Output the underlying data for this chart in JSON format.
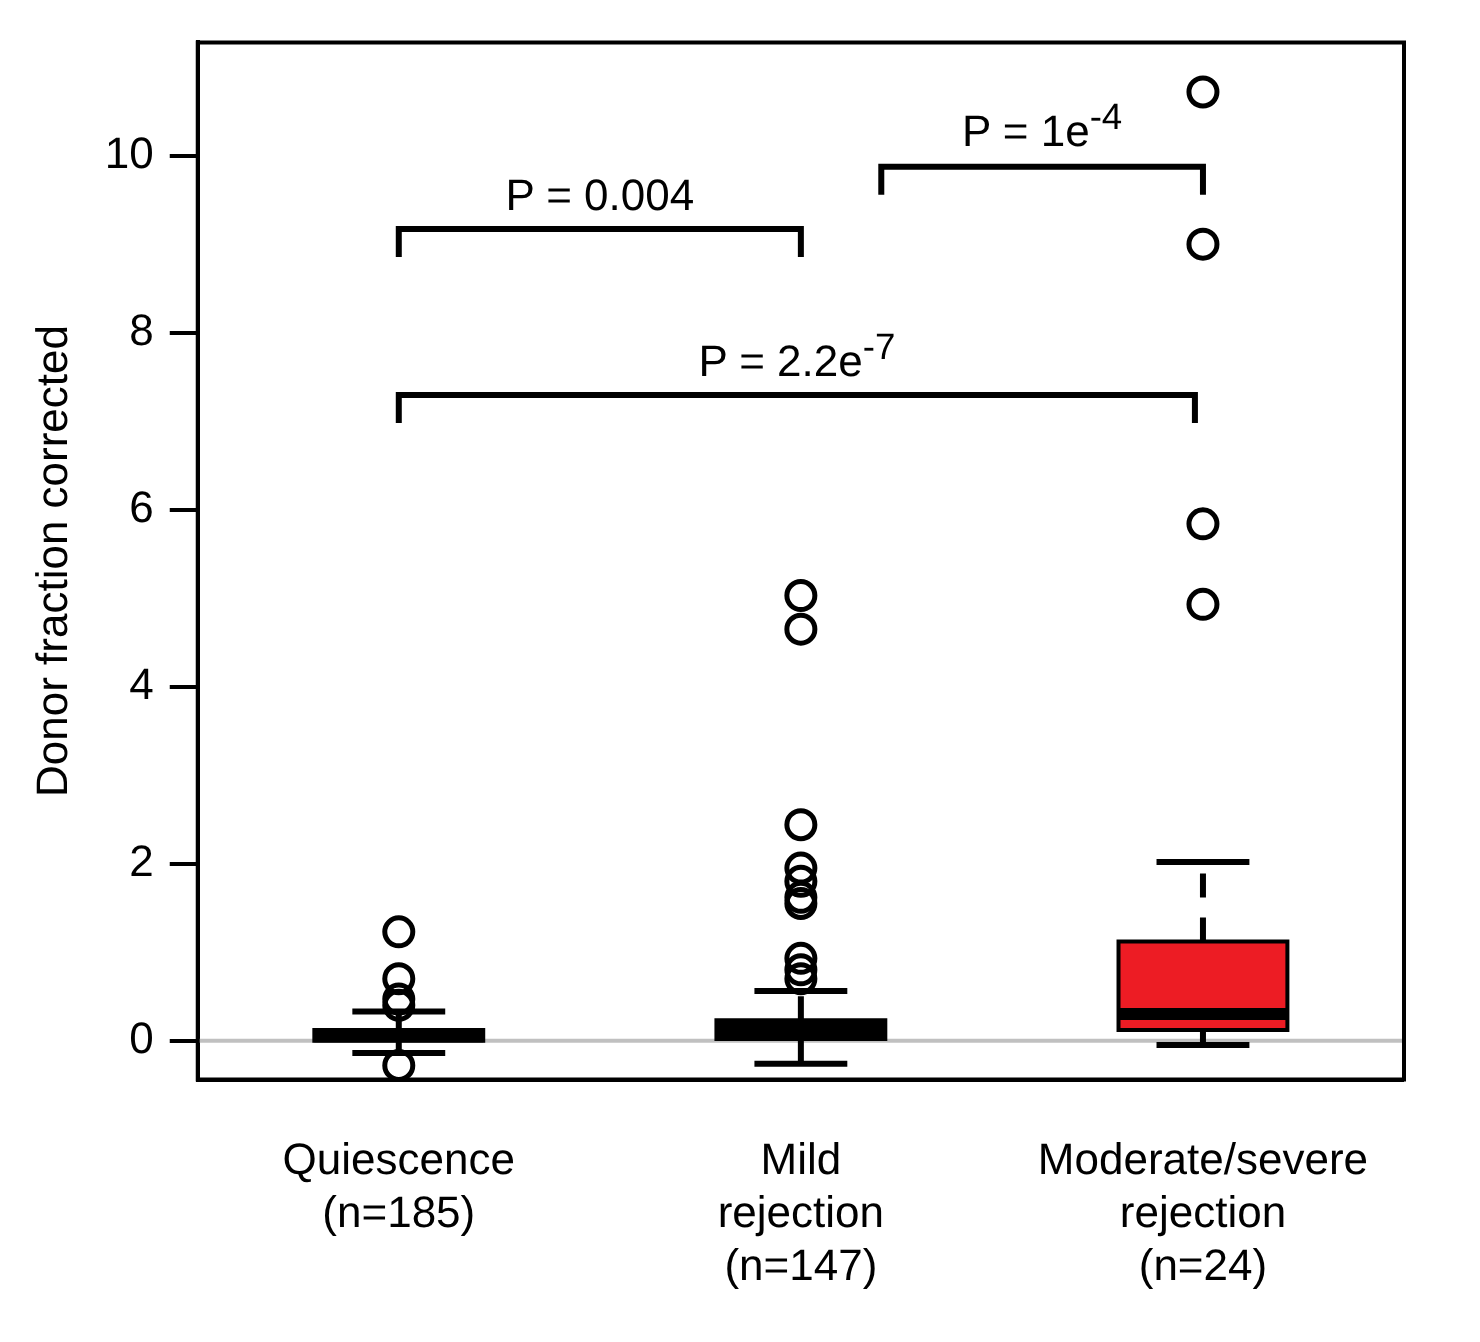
{
  "chart_data": {
    "type": "box",
    "ylabel": "Donor fraction corrected",
    "categories": [
      "Quiescence\n(n=185)",
      "Mild\nrejection\n(n=147)",
      "Moderate/severe\nrejection\n(n=24)"
    ],
    "colors": [
      "#000000",
      "#000000",
      "#ed1c24"
    ],
    "boxes": [
      {
        "low": -0.14,
        "q1": 0.0,
        "median": 0.05,
        "q3": 0.12,
        "high": 0.33,
        "outliers": [
          1.23,
          0.7,
          0.47,
          0.4,
          -0.28
        ]
      },
      {
        "low": -0.26,
        "q1": 0.02,
        "median": 0.1,
        "q3": 0.23,
        "high": 0.56,
        "outliers": [
          5.03,
          4.65,
          2.44,
          1.95,
          1.8,
          1.62,
          1.55,
          0.93,
          0.8,
          0.7
        ]
      },
      {
        "low": -0.05,
        "q1": 0.12,
        "median": 0.3,
        "q3": 1.12,
        "high": 2.02,
        "outliers": [
          10.72,
          9.0,
          5.84,
          4.93
        ]
      }
    ],
    "ylim": [
      -0.44,
      11.28
    ],
    "yticks": [
      0,
      2,
      4,
      6,
      8,
      10
    ],
    "grid": false,
    "legend": false,
    "marker": "circle",
    "ref_lines": [
      {
        "axis": "y",
        "value": 0,
        "color": "#c0c0c0"
      }
    ],
    "annotations": [
      "P = 0.004",
      "P = 1e$^{-4}$",
      "P = 2.2e$^{-7}$"
    ]
  }
}
